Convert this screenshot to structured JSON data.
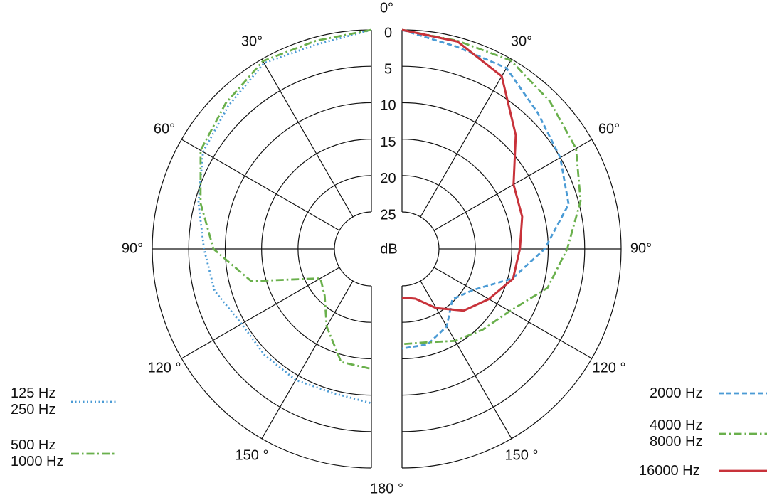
{
  "chart_data": {
    "type": "polar",
    "x": [
      0,
      15,
      30,
      45,
      60,
      75,
      90,
      105,
      120,
      135,
      150,
      165,
      180
    ],
    "xlim": [
      0,
      180
    ],
    "xticks": [
      {
        "value": 0,
        "label": "0°"
      },
      {
        "value": 30,
        "label": "30°"
      },
      {
        "value": 60,
        "label": "60°"
      },
      {
        "value": 90,
        "label": "90°"
      },
      {
        "value": 120,
        "label": "120 °"
      },
      {
        "value": 150,
        "label": "150 °"
      },
      {
        "value": 180,
        "label": "180 °"
      }
    ],
    "ylim": [
      0,
      25
    ],
    "yticks": [
      0,
      5,
      10,
      15,
      20,
      25
    ],
    "r_label": "dB",
    "series": [
      {
        "name": "125 Hz\n250 Hz",
        "side": "left",
        "color": "#4b9bd5",
        "line_style": "dotted",
        "values": [
          0,
          1.0,
          0.6,
          2.3,
          3.4,
          5.5,
          7.1,
          7.8,
          9.5,
          9.4,
          9.3,
          9.6,
          8.9
        ]
      },
      {
        "name": "500 Hz\n1000 Hz",
        "side": "left",
        "color": "#6ab04c",
        "line_style": "dashdot",
        "values": [
          0,
          0.5,
          0.3,
          1.8,
          3,
          5.8,
          8.4,
          13,
          22,
          21,
          17.8,
          14,
          13.6
        ]
      },
      {
        "name": "2000 Hz",
        "side": "right",
        "color": "#4b9bd5",
        "line_style": "dashed",
        "values": [
          0,
          1.3,
          1.4,
          3.7,
          5.0,
          6.4,
          10.5,
          14.4,
          18.8,
          20.3,
          17.8,
          16.5,
          16.4
        ]
      },
      {
        "name": "4000 Hz\n8000 Hz",
        "side": "right",
        "color": "#6ab04c",
        "line_style": "dashdot",
        "values": [
          0,
          0.5,
          0.2,
          1.4,
          2.5,
          4.7,
          7.4,
          9.4,
          13,
          14.4,
          15.5,
          16.8,
          17
        ]
      },
      {
        "name": "16000 Hz",
        "side": "right",
        "color": "#c8323a",
        "line_style": "solid",
        "values": [
          0,
          0.6,
          2.7,
          8.0,
          12.4,
          13.0,
          13.9,
          14.3,
          16.3,
          18.1,
          20.7,
          23,
          23.4
        ]
      }
    ]
  }
}
